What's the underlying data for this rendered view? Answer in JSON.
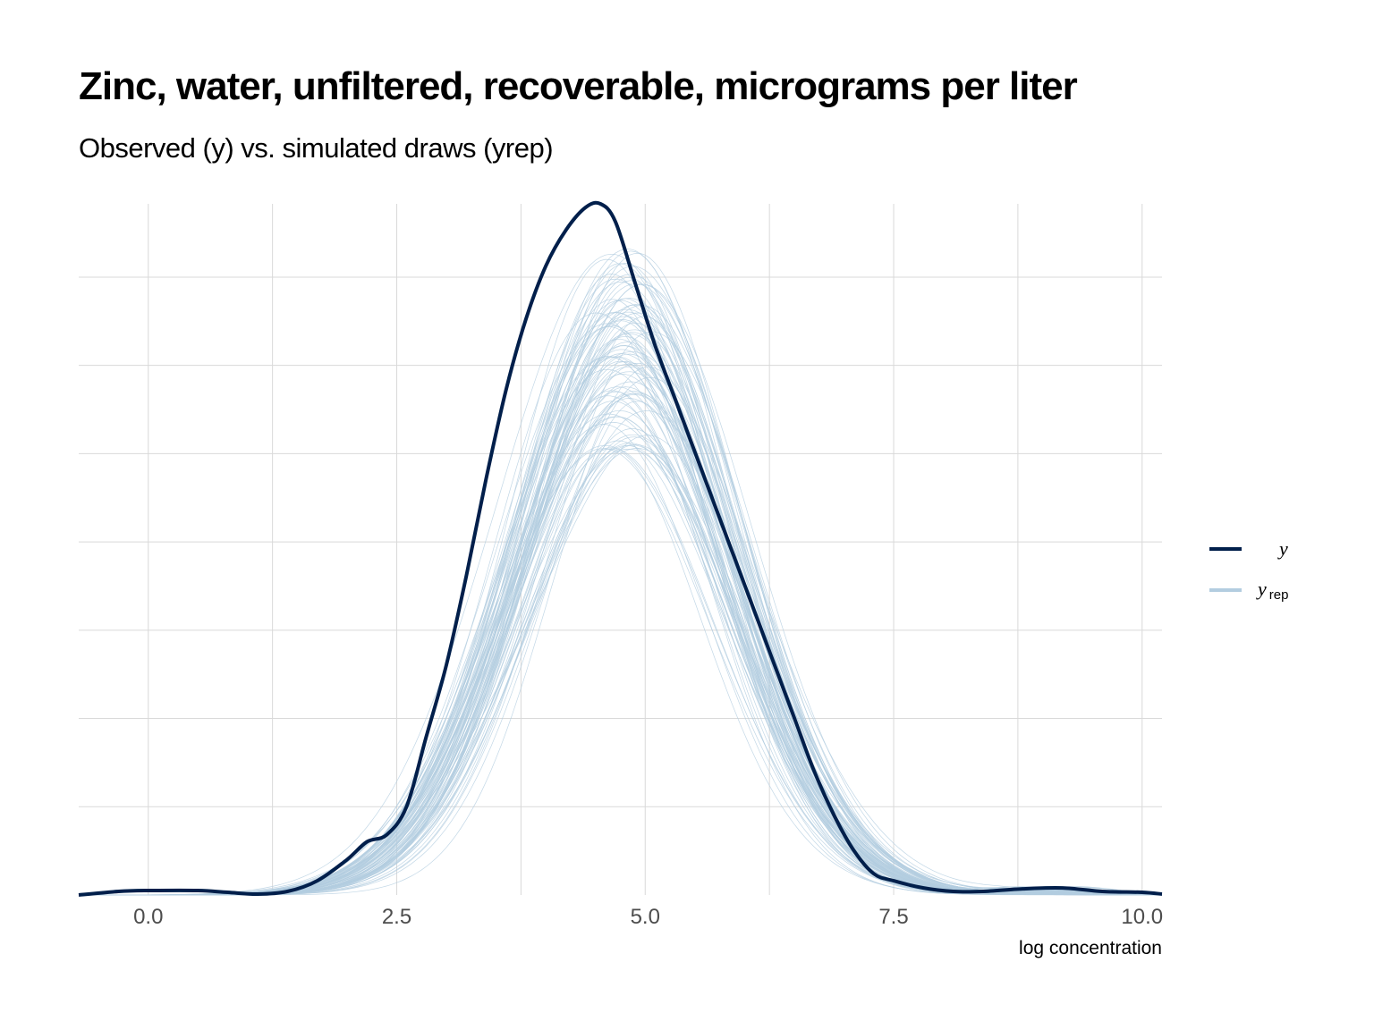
{
  "title": "Zinc, water, unfiltered, recoverable, micrograms per liter",
  "subtitle": "Observed (y) vs. simulated draws (yrep)",
  "colors": {
    "y": "#011f4b",
    "yrep": "#b3cde0",
    "grid": "#d9d9d9"
  },
  "chart_data": {
    "type": "line",
    "title": "Zinc, water, unfiltered, recoverable, micrograms per liter",
    "subtitle": "Observed (y) vs. simulated draws (yrep)",
    "xlabel": "log concentration",
    "ylabel": "",
    "xlim": [
      -0.7,
      10.2
    ],
    "ylim": [
      0,
      0.39
    ],
    "x_ticks": [
      0.0,
      2.5,
      5.0,
      7.5,
      10.0
    ],
    "x_tick_labels": [
      "0.0",
      "2.5",
      "5.0",
      "7.5",
      "10.0"
    ],
    "y_tick_labels_shown": false,
    "grid": true,
    "legend": {
      "position": "right",
      "entries": [
        {
          "label": "y",
          "subscript": "",
          "color": "#011f4b"
        },
        {
          "label": "y",
          "subscript": "rep",
          "color": "#b3cde0"
        }
      ]
    },
    "series": [
      {
        "name": "y",
        "x": [
          -0.7,
          -0.3,
          0.0,
          0.5,
          0.8,
          1.1,
          1.4,
          1.7,
          2.0,
          2.2,
          2.4,
          2.6,
          2.8,
          3.0,
          3.2,
          3.4,
          3.6,
          3.8,
          4.0,
          4.2,
          4.4,
          4.55,
          4.7,
          4.9,
          5.1,
          5.3,
          5.5,
          5.7,
          5.9,
          6.1,
          6.3,
          6.5,
          6.7,
          6.9,
          7.1,
          7.3,
          7.5,
          7.8,
          8.1,
          8.4,
          8.8,
          9.2,
          9.6,
          10.0,
          10.2
        ],
        "values": [
          0.0,
          0.002,
          0.0025,
          0.0025,
          0.0015,
          0.0005,
          0.002,
          0.008,
          0.02,
          0.03,
          0.034,
          0.05,
          0.09,
          0.13,
          0.18,
          0.235,
          0.285,
          0.325,
          0.355,
          0.375,
          0.388,
          0.39,
          0.38,
          0.345,
          0.31,
          0.28,
          0.25,
          0.22,
          0.19,
          0.16,
          0.13,
          0.1,
          0.07,
          0.045,
          0.025,
          0.012,
          0.008,
          0.004,
          0.002,
          0.002,
          0.0035,
          0.004,
          0.002,
          0.0015,
          0.0005
        ]
      }
    ],
    "yrep_draws": {
      "name": "yrep",
      "count": 100,
      "shape": "approximately normal",
      "mean_range": [
        4.6,
        5.0
      ],
      "peak_density_range": [
        0.25,
        0.365
      ]
    }
  }
}
